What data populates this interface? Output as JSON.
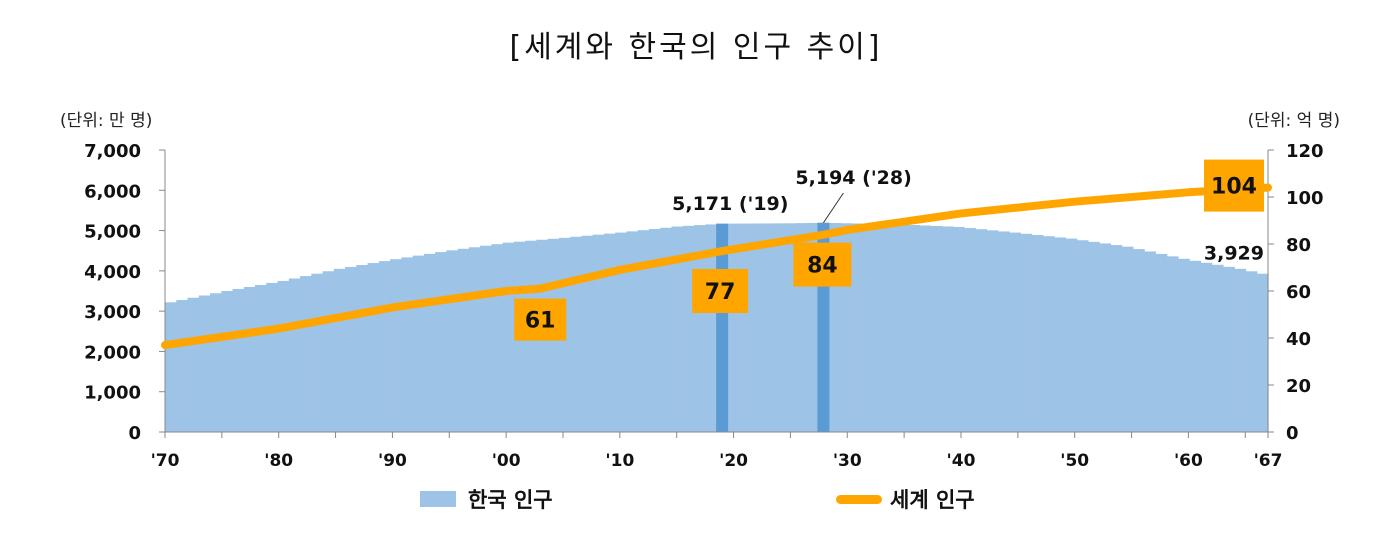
{
  "title": "[세계와 한국의 인구 추이]",
  "left_unit": "(단위: 만 명)",
  "right_unit": "(단위: 억 명)",
  "legend": {
    "korea": "한국 인구",
    "world": "세계 인구"
  },
  "colors": {
    "korea_area": "#9dc3e6",
    "highlight_bar": "#5b9bd5",
    "world_line": "#ffa500",
    "label_box": "#ffa500"
  },
  "chart_data": {
    "type": "bar",
    "x_ticks": [
      "'70",
      "'80",
      "'90",
      "'00",
      "'10",
      "'20",
      "'30",
      "'40",
      "'50",
      "'60",
      "'67"
    ],
    "y_left": {
      "ticks": [
        "0",
        "1,000",
        "2,000",
        "3,000",
        "4,000",
        "5,000",
        "6,000",
        "7,000"
      ],
      "ylim": [
        0,
        7000
      ]
    },
    "y_right": {
      "ticks": [
        "0",
        "20",
        "40",
        "60",
        "80",
        "100",
        "120"
      ],
      "ylim": [
        0,
        120
      ]
    },
    "highlights": [
      {
        "year": 2019,
        "label": "5,171 ('19)"
      },
      {
        "year": 2028,
        "label": "5,194 ('28)"
      }
    ],
    "end_label": "3,929",
    "series": [
      {
        "name": "한국 인구",
        "type": "bar",
        "axis": "left",
        "x": [
          1970,
          1975,
          1980,
          1985,
          1990,
          1995,
          2000,
          2005,
          2010,
          2015,
          2019,
          2025,
          2028,
          2035,
          2040,
          2045,
          2050,
          2055,
          2060,
          2065,
          2067
        ],
        "values": [
          3220,
          3500,
          3750,
          4050,
          4290,
          4510,
          4700,
          4820,
          4950,
          5100,
          5171,
          5180,
          5194,
          5150,
          5090,
          4950,
          4800,
          4600,
          4300,
          4050,
          3929
        ]
      },
      {
        "name": "세계 인구",
        "type": "line",
        "axis": "right",
        "x": [
          1970,
          1980,
          1990,
          2000,
          2003,
          2010,
          2019,
          2028,
          2030,
          2040,
          2050,
          2060,
          2067
        ],
        "values": [
          37,
          44,
          53,
          60,
          61,
          69,
          77,
          84,
          86,
          93,
          98,
          102,
          104
        ],
        "labeled_points": [
          {
            "x": 2003,
            "label": "61"
          },
          {
            "x": 2019,
            "label": "77"
          },
          {
            "x": 2028,
            "label": "84"
          },
          {
            "x": 2067,
            "label": "104"
          }
        ]
      }
    ]
  }
}
